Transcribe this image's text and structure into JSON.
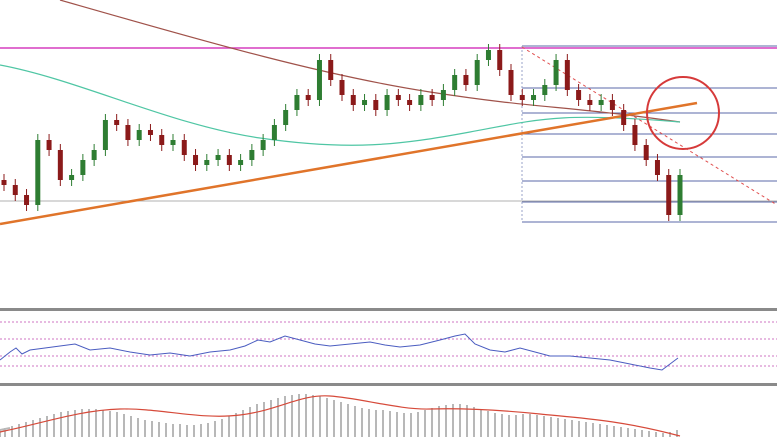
{
  "chart_data": {
    "type": "candlestick",
    "ylim": [
      0,
      308
    ],
    "up_color": "#2e7d32",
    "down_color": "#8b1a1a",
    "open": [
      128,
      123,
      113,
      103,
      168,
      158,
      128,
      133,
      148,
      158,
      188,
      183,
      168,
      178,
      173,
      163,
      168,
      153,
      143,
      148,
      153,
      143,
      148,
      158,
      168,
      183,
      198,
      213,
      208,
      248,
      228,
      213,
      203,
      208,
      198,
      213,
      208,
      203,
      213,
      208,
      218,
      233,
      223,
      248,
      258,
      238,
      213,
      208,
      213,
      223,
      248,
      218,
      208,
      203,
      208,
      198,
      183,
      163,
      148,
      133,
      93
    ],
    "high": [
      134,
      129,
      119,
      174,
      174,
      164,
      139,
      154,
      164,
      194,
      194,
      189,
      184,
      184,
      179,
      174,
      174,
      159,
      154,
      159,
      159,
      154,
      164,
      174,
      189,
      204,
      219,
      219,
      254,
      254,
      234,
      219,
      214,
      214,
      219,
      219,
      214,
      219,
      219,
      224,
      239,
      239,
      254,
      264,
      264,
      244,
      219,
      219,
      229,
      254,
      254,
      224,
      214,
      214,
      214,
      204,
      189,
      169,
      154,
      139,
      139
    ],
    "low": [
      117,
      107,
      97,
      97,
      152,
      122,
      122,
      127,
      142,
      152,
      177,
      162,
      162,
      167,
      157,
      157,
      147,
      137,
      137,
      142,
      137,
      137,
      142,
      152,
      162,
      177,
      192,
      202,
      202,
      222,
      207,
      197,
      197,
      192,
      192,
      202,
      197,
      197,
      202,
      202,
      212,
      217,
      217,
      242,
      232,
      207,
      202,
      202,
      207,
      217,
      212,
      202,
      197,
      197,
      192,
      177,
      157,
      142,
      127,
      87,
      87
    ],
    "close": [
      123,
      113,
      103,
      168,
      158,
      128,
      133,
      148,
      158,
      188,
      183,
      168,
      178,
      173,
      163,
      168,
      153,
      143,
      148,
      153,
      143,
      148,
      158,
      168,
      183,
      198,
      213,
      208,
      248,
      228,
      213,
      203,
      208,
      198,
      213,
      208,
      203,
      213,
      208,
      218,
      233,
      223,
      248,
      258,
      238,
      213,
      208,
      213,
      223,
      248,
      218,
      208,
      203,
      208,
      198,
      183,
      163,
      148,
      133,
      93,
      133
    ]
  }
}
